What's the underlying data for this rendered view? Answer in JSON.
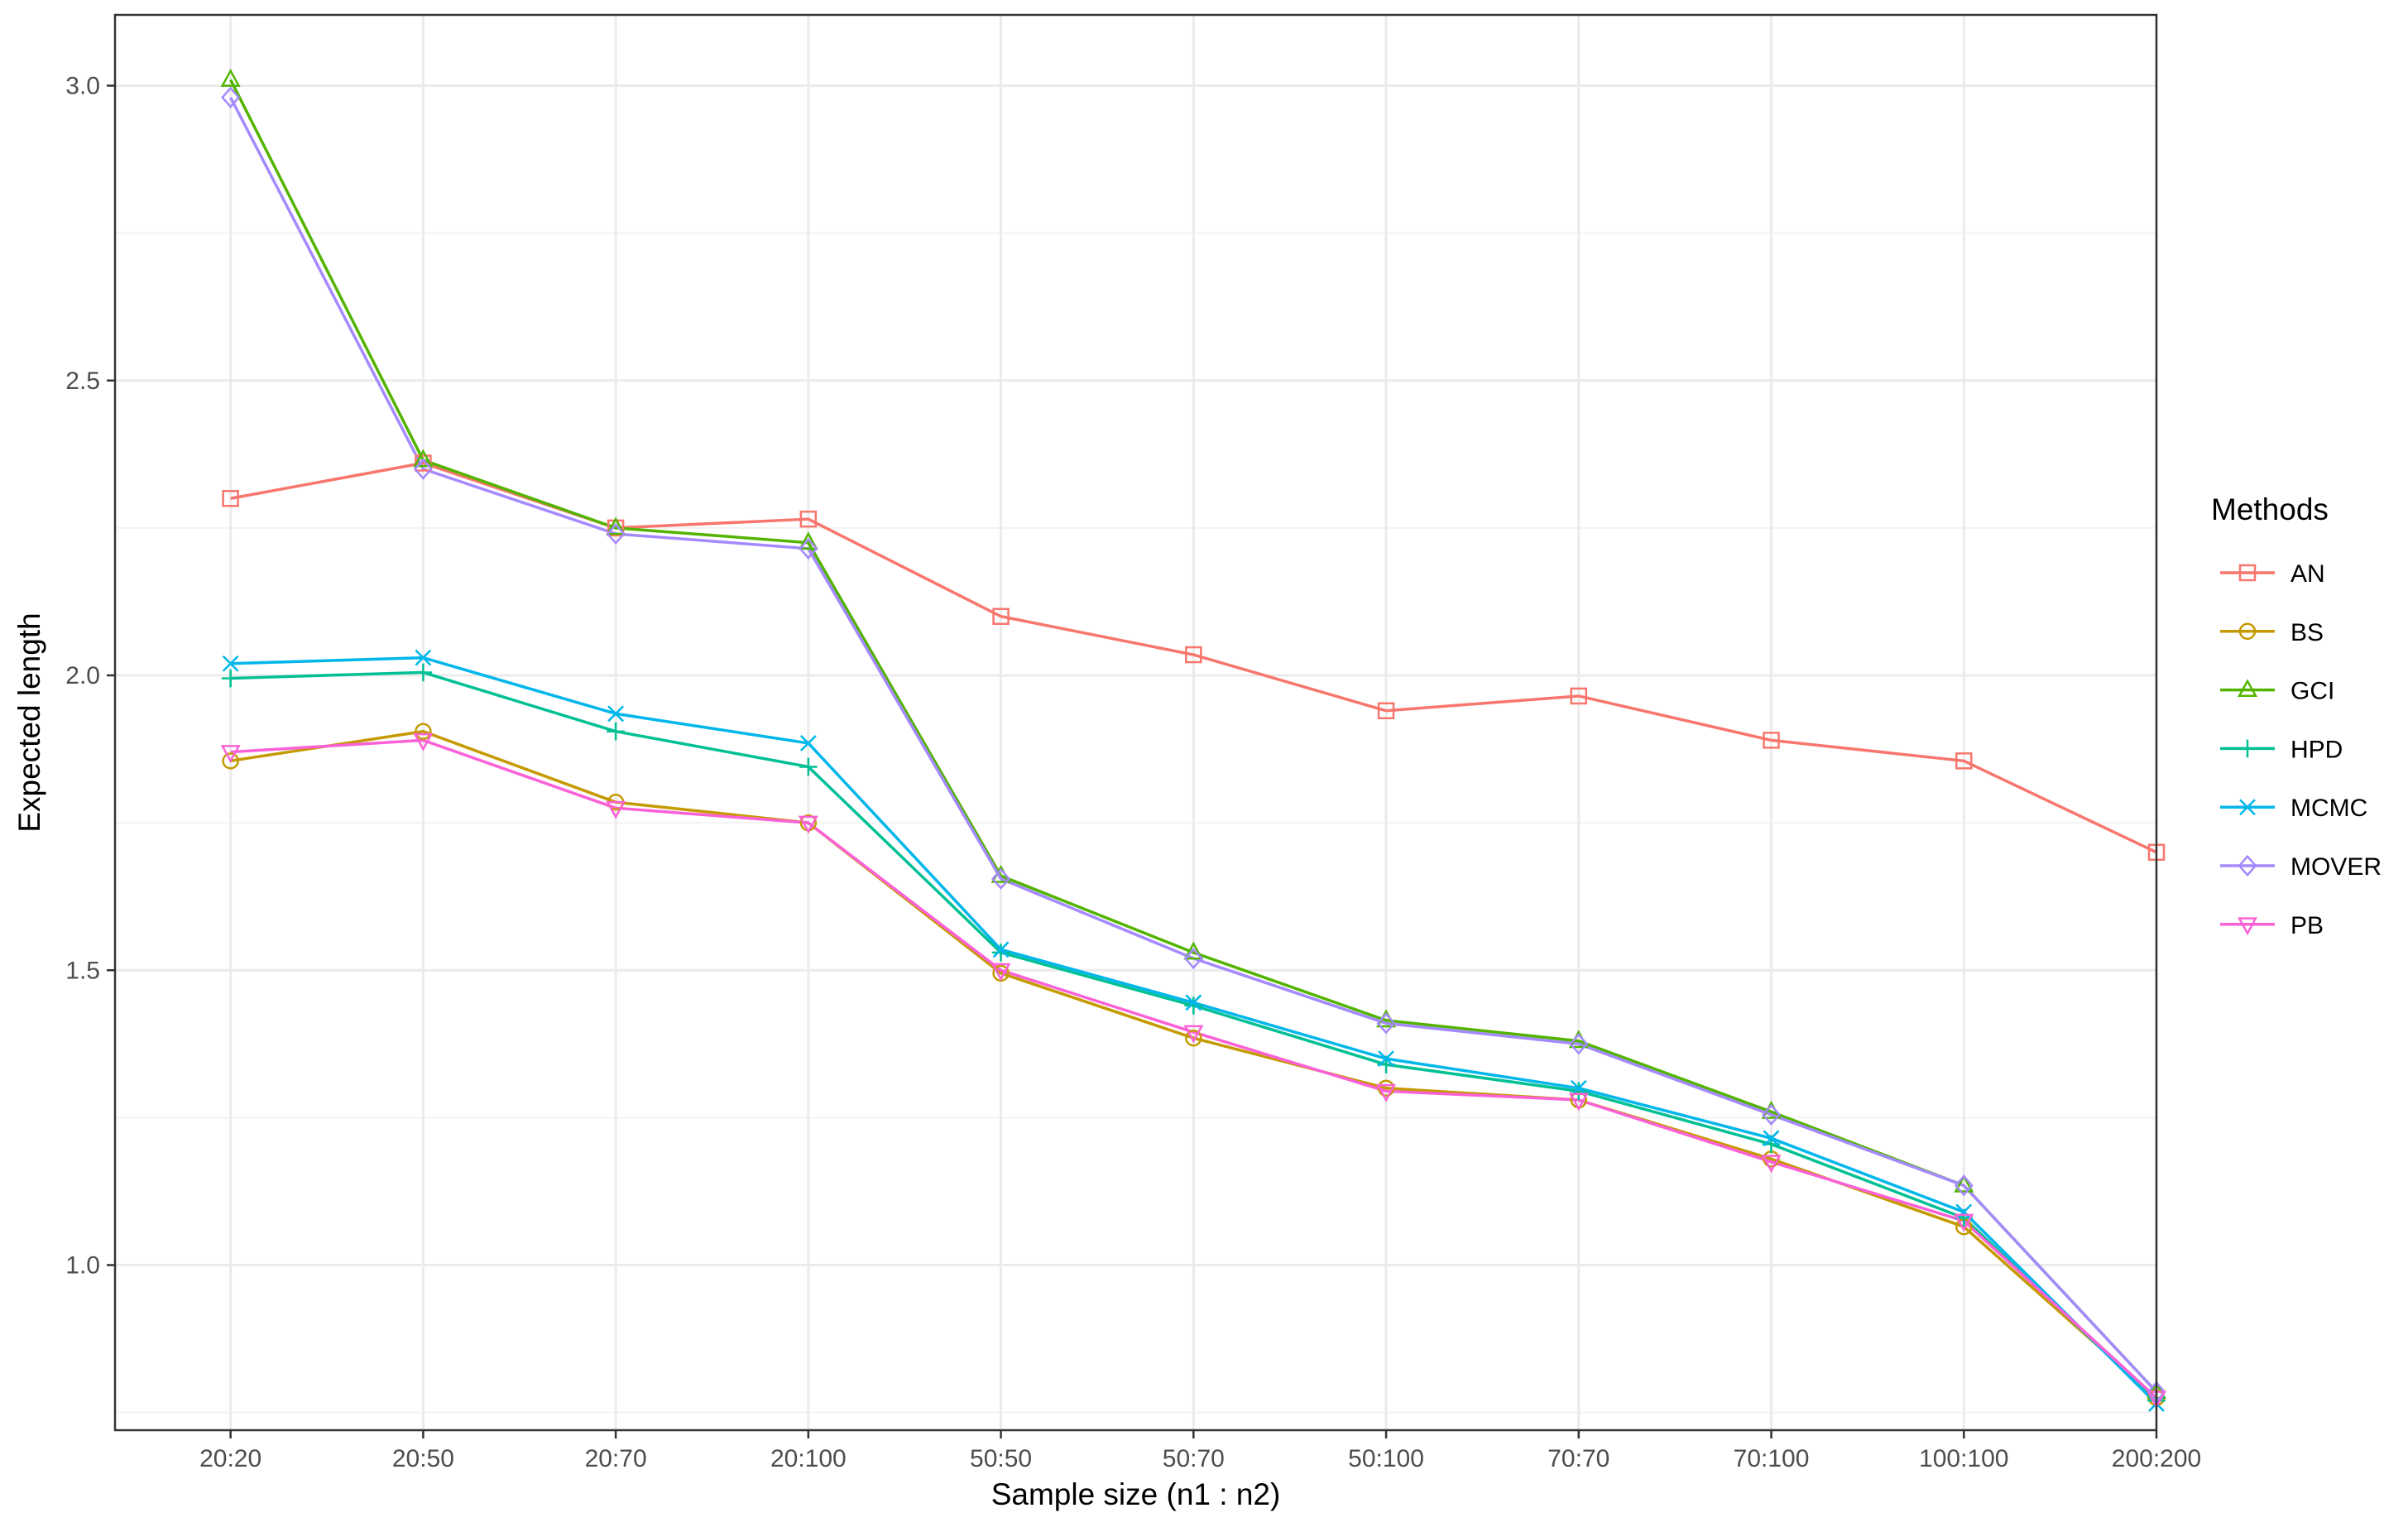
{
  "chart_data": {
    "type": "line",
    "title": "",
    "xlabel": "Sample size (n1 : n2)",
    "ylabel": "Expected length",
    "categories": [
      "20:20",
      "20:50",
      "20:70",
      "20:100",
      "50:50",
      "50:70",
      "50:100",
      "70:70",
      "70:100",
      "100:100",
      "200:200"
    ],
    "ylim": [
      0.72,
      3.12
    ],
    "yticks": [
      1.0,
      1.5,
      2.0,
      2.5,
      3.0
    ],
    "ytick_labels": [
      "1.0",
      "1.5",
      "2.0",
      "2.5",
      "3.0"
    ],
    "grid": true,
    "legend": {
      "title": "Methods",
      "position": "right"
    },
    "series": [
      {
        "name": "AN",
        "color": "#F8766D",
        "marker": "square",
        "values": [
          2.3,
          2.36,
          2.25,
          2.265,
          2.1,
          2.035,
          1.94,
          1.965,
          1.89,
          1.855,
          1.7
        ]
      },
      {
        "name": "BS",
        "color": "#C49A00",
        "marker": "circle",
        "values": [
          1.855,
          1.905,
          1.785,
          1.75,
          1.495,
          1.385,
          1.3,
          1.28,
          1.18,
          1.065,
          0.775
        ]
      },
      {
        "name": "GCI",
        "color": "#53B400",
        "marker": "triangle",
        "values": [
          3.01,
          2.365,
          2.25,
          2.225,
          1.66,
          1.53,
          1.415,
          1.38,
          1.26,
          1.135,
          0.785
        ]
      },
      {
        "name": "HPD",
        "color": "#00C094",
        "marker": "plus",
        "values": [
          1.995,
          2.005,
          1.905,
          1.845,
          1.53,
          1.44,
          1.34,
          1.295,
          1.205,
          1.08,
          0.77
        ]
      },
      {
        "name": "MCMC",
        "color": "#00B6EB",
        "marker": "x",
        "values": [
          2.02,
          2.03,
          1.935,
          1.885,
          1.535,
          1.445,
          1.35,
          1.3,
          1.215,
          1.09,
          0.765
        ]
      },
      {
        "name": "MOVER",
        "color": "#A58AFF",
        "marker": "diamond",
        "values": [
          2.98,
          2.35,
          2.24,
          2.215,
          1.655,
          1.52,
          1.41,
          1.375,
          1.255,
          1.135,
          0.785
        ]
      },
      {
        "name": "PB",
        "color": "#FB61D7",
        "marker": "triangle-down",
        "values": [
          1.87,
          1.89,
          1.775,
          1.75,
          1.5,
          1.395,
          1.295,
          1.28,
          1.175,
          1.075,
          0.775
        ]
      }
    ]
  }
}
